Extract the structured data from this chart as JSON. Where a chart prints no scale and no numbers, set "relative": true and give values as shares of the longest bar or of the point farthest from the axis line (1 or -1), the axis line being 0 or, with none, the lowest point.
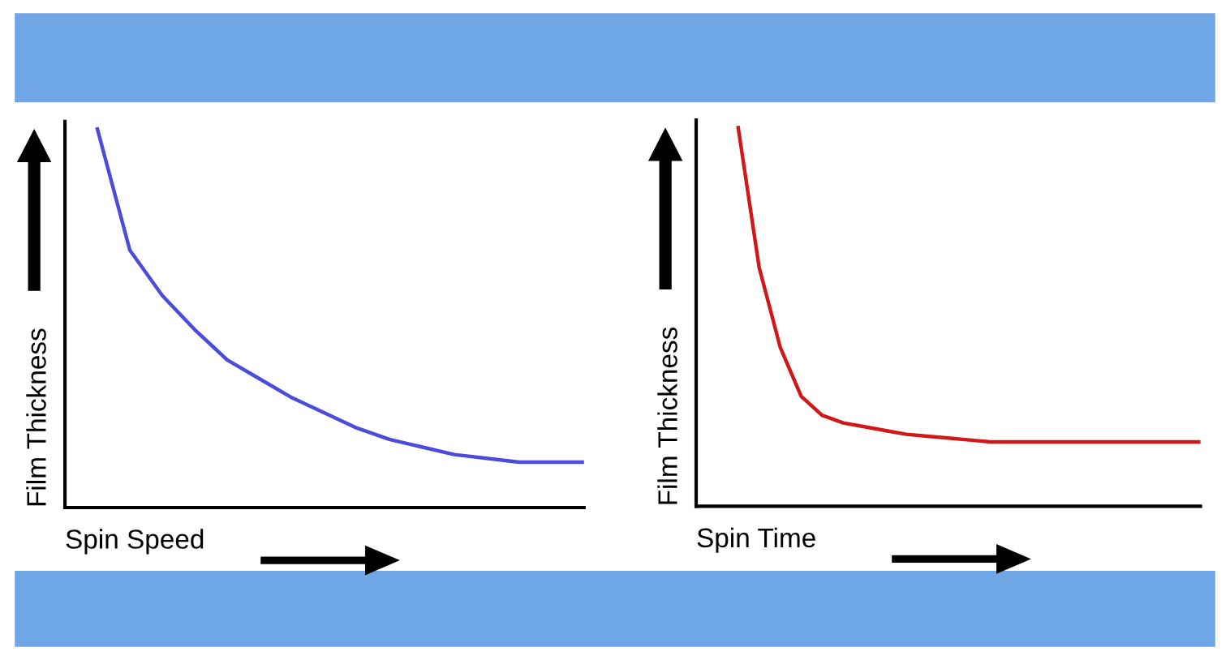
{
  "chart_data": [
    {
      "type": "line",
      "relative": true,
      "xlabel": "Spin Speed",
      "ylabel": "Film Thickness",
      "grid": false,
      "legend": false,
      "marker": "none",
      "line_style": "solid",
      "categories": [
        null,
        null,
        null,
        null,
        null,
        null,
        null,
        null,
        null,
        null,
        null,
        null,
        null,
        null,
        null,
        null,
        null
      ],
      "series": [
        {
          "color": "#4b4bdc",
          "values": [
            null,
            1,
            0.68,
            0.56,
            0.47,
            0.39,
            0.34,
            0.29,
            0.25,
            0.21,
            0.18,
            0.16,
            0.14,
            0.13,
            0.12,
            0.12,
            0.12
          ]
        }
      ]
    },
    {
      "type": "line",
      "relative": true,
      "xlabel": "Spin Time",
      "ylabel": "Film Thickness",
      "grid": false,
      "legend": false,
      "marker": "none",
      "line_style": "solid",
      "categories": [
        null,
        null,
        null,
        null,
        null,
        null,
        null,
        null,
        null,
        null,
        null,
        null,
        null,
        null,
        null,
        null,
        null,
        null,
        null,
        null,
        null,
        null,
        null,
        null,
        null
      ],
      "series": [
        {
          "color": "#d01818",
          "values": [
            null,
            null,
            1,
            0.63,
            0.42,
            0.29,
            0.24,
            0.22,
            0.21,
            0.2,
            0.19,
            0.185,
            0.18,
            0.175,
            0.17,
            0.17,
            0.17,
            0.17,
            0.17,
            0.17,
            0.17,
            0.17,
            0.17,
            0.17,
            0.17
          ]
        }
      ]
    }
  ]
}
